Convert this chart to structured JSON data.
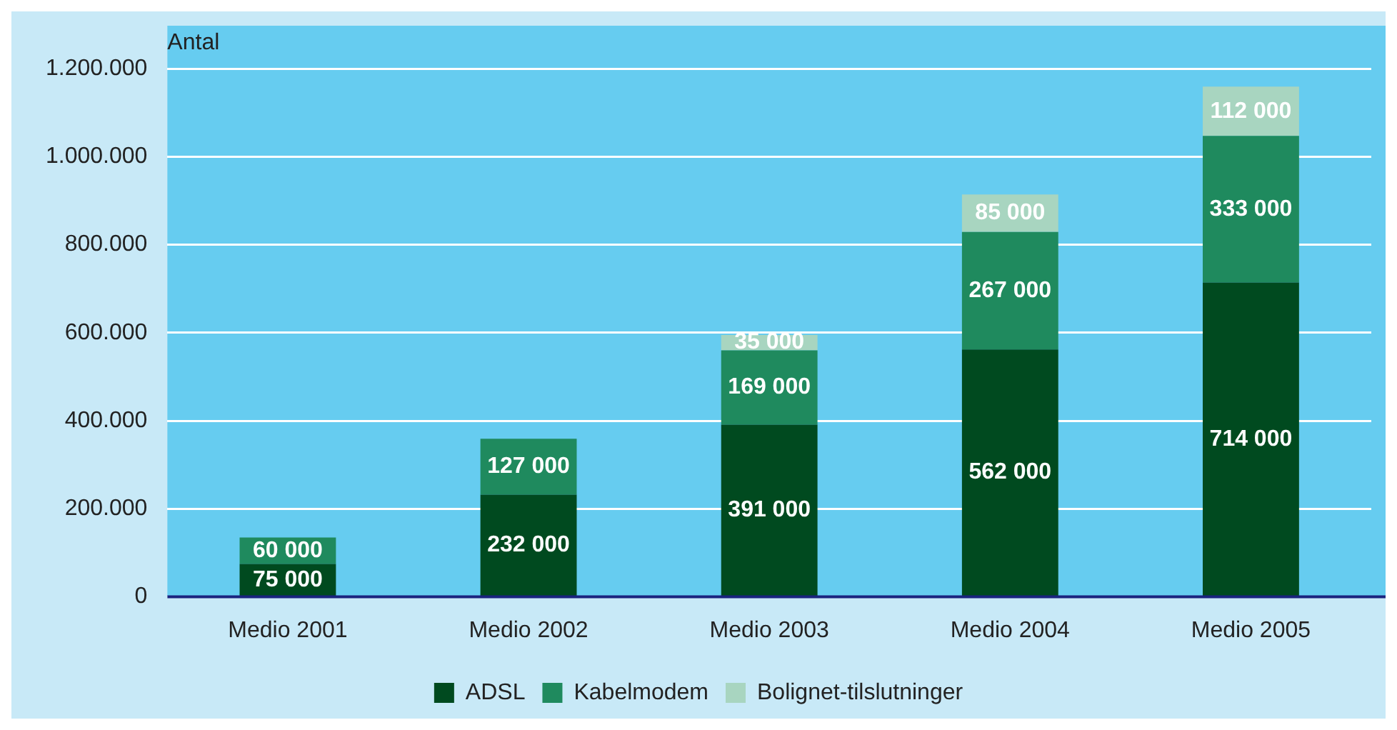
{
  "chart_data": {
    "type": "bar",
    "ylabel": "Antal",
    "stacked": true,
    "categories": [
      "Medio 2001",
      "Medio 2002",
      "Medio 2003",
      "Medio 2004",
      "Medio 2005"
    ],
    "series": [
      {
        "name": "ADSL",
        "color": "#004a1f",
        "values": [
          75000,
          232000,
          391000,
          562000,
          714000
        ],
        "value_labels": [
          "75 000",
          "232 000",
          "391 000",
          "562 000",
          "714 000"
        ]
      },
      {
        "name": "Kabelmodem",
        "color": "#1f8a5e",
        "values": [
          60000,
          127000,
          169000,
          267000,
          333000
        ],
        "value_labels": [
          "60 000",
          "127 000",
          "169 000",
          "267 000",
          "333 000"
        ]
      },
      {
        "name": "Bolignet-tilslutninger",
        "color": "#a8d5c0",
        "values": [
          null,
          null,
          35000,
          85000,
          112000
        ],
        "value_labels": [
          null,
          null,
          "35 000",
          "85 000",
          "112 000"
        ]
      }
    ],
    "ylim": [
      0,
      1200000
    ],
    "yticks": [
      {
        "value": 0,
        "label": "0"
      },
      {
        "value": 200000,
        "label": "200.000"
      },
      {
        "value": 400000,
        "label": "400.000"
      },
      {
        "value": 600000,
        "label": "600.000"
      },
      {
        "value": 800000,
        "label": "800.000"
      },
      {
        "value": 1000000,
        "label": "1.000.000"
      },
      {
        "value": 1200000,
        "label": "1.200.000"
      }
    ],
    "grid": "y",
    "legend": "bottom"
  }
}
